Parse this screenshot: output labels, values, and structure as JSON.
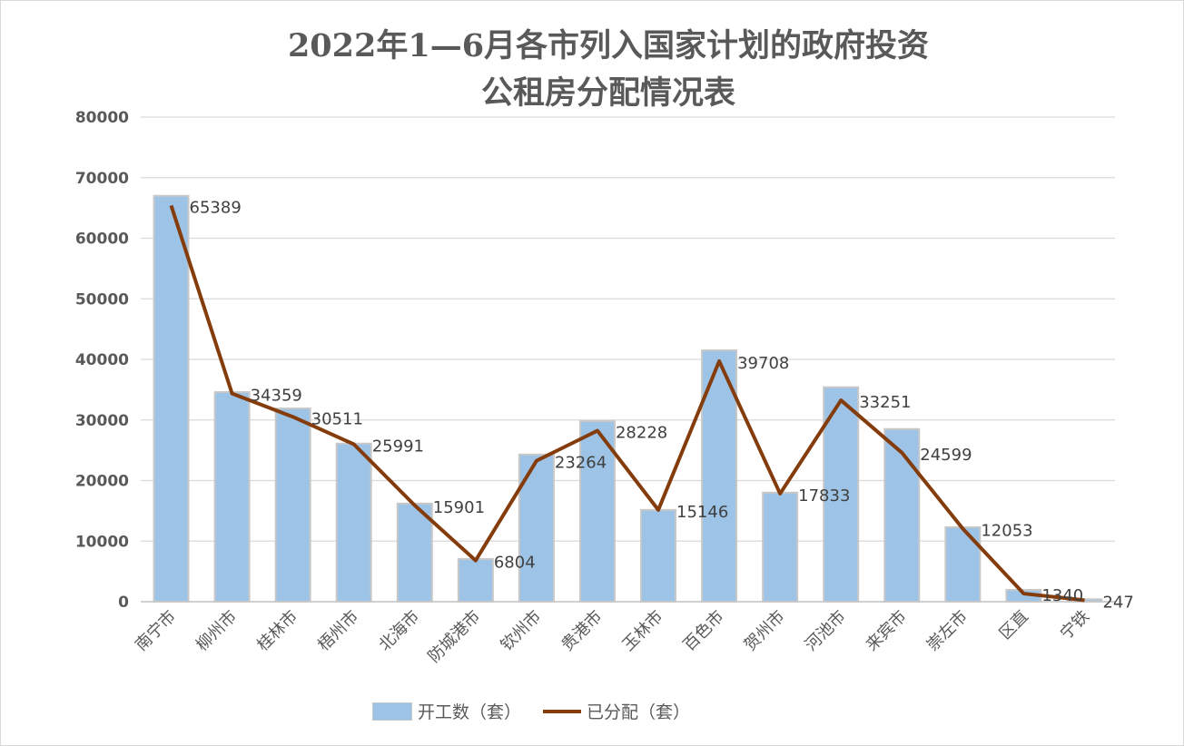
{
  "chart_data": {
    "type": "bar",
    "title_line1": "2022年1—6月各市列入国家计划的政府投资",
    "title_line2": "公租房分配情况表",
    "categories": [
      "南宁市",
      "柳州市",
      "桂林市",
      "梧州市",
      "北海市",
      "防城港市",
      "钦州市",
      "贵港市",
      "玉林市",
      "百色市",
      "贺州市",
      "河池市",
      "来宾市",
      "崇左市",
      "区直",
      "宁铁"
    ],
    "series": [
      {
        "name": "开工数（套）",
        "type": "bar",
        "color": "#9dc3e6",
        "values": [
          67000,
          34600,
          31900,
          26100,
          16200,
          7050,
          24300,
          29800,
          15150,
          41500,
          18000,
          35400,
          28500,
          12300,
          1950,
          400
        ]
      },
      {
        "name": "已分配（套）",
        "type": "line",
        "color": "#843c0c",
        "values": [
          65389,
          34359,
          30511,
          25991,
          15901,
          6804,
          23264,
          28228,
          15146,
          39708,
          17833,
          33251,
          24599,
          12053,
          1340,
          247
        ]
      }
    ],
    "data_labels": [
      "65389",
      "34359",
      "30511",
      "25991",
      "15901",
      "6804",
      "23264",
      "28228",
      "15146",
      "39708",
      "17833",
      "33251",
      "24599",
      "12053",
      "1340",
      "247"
    ],
    "ylim": [
      0,
      80000
    ],
    "yticks": [
      "0",
      "10000",
      "20000",
      "30000",
      "40000",
      "50000",
      "60000",
      "70000",
      "80000"
    ],
    "grid": true,
    "legend_position": "bottom"
  }
}
